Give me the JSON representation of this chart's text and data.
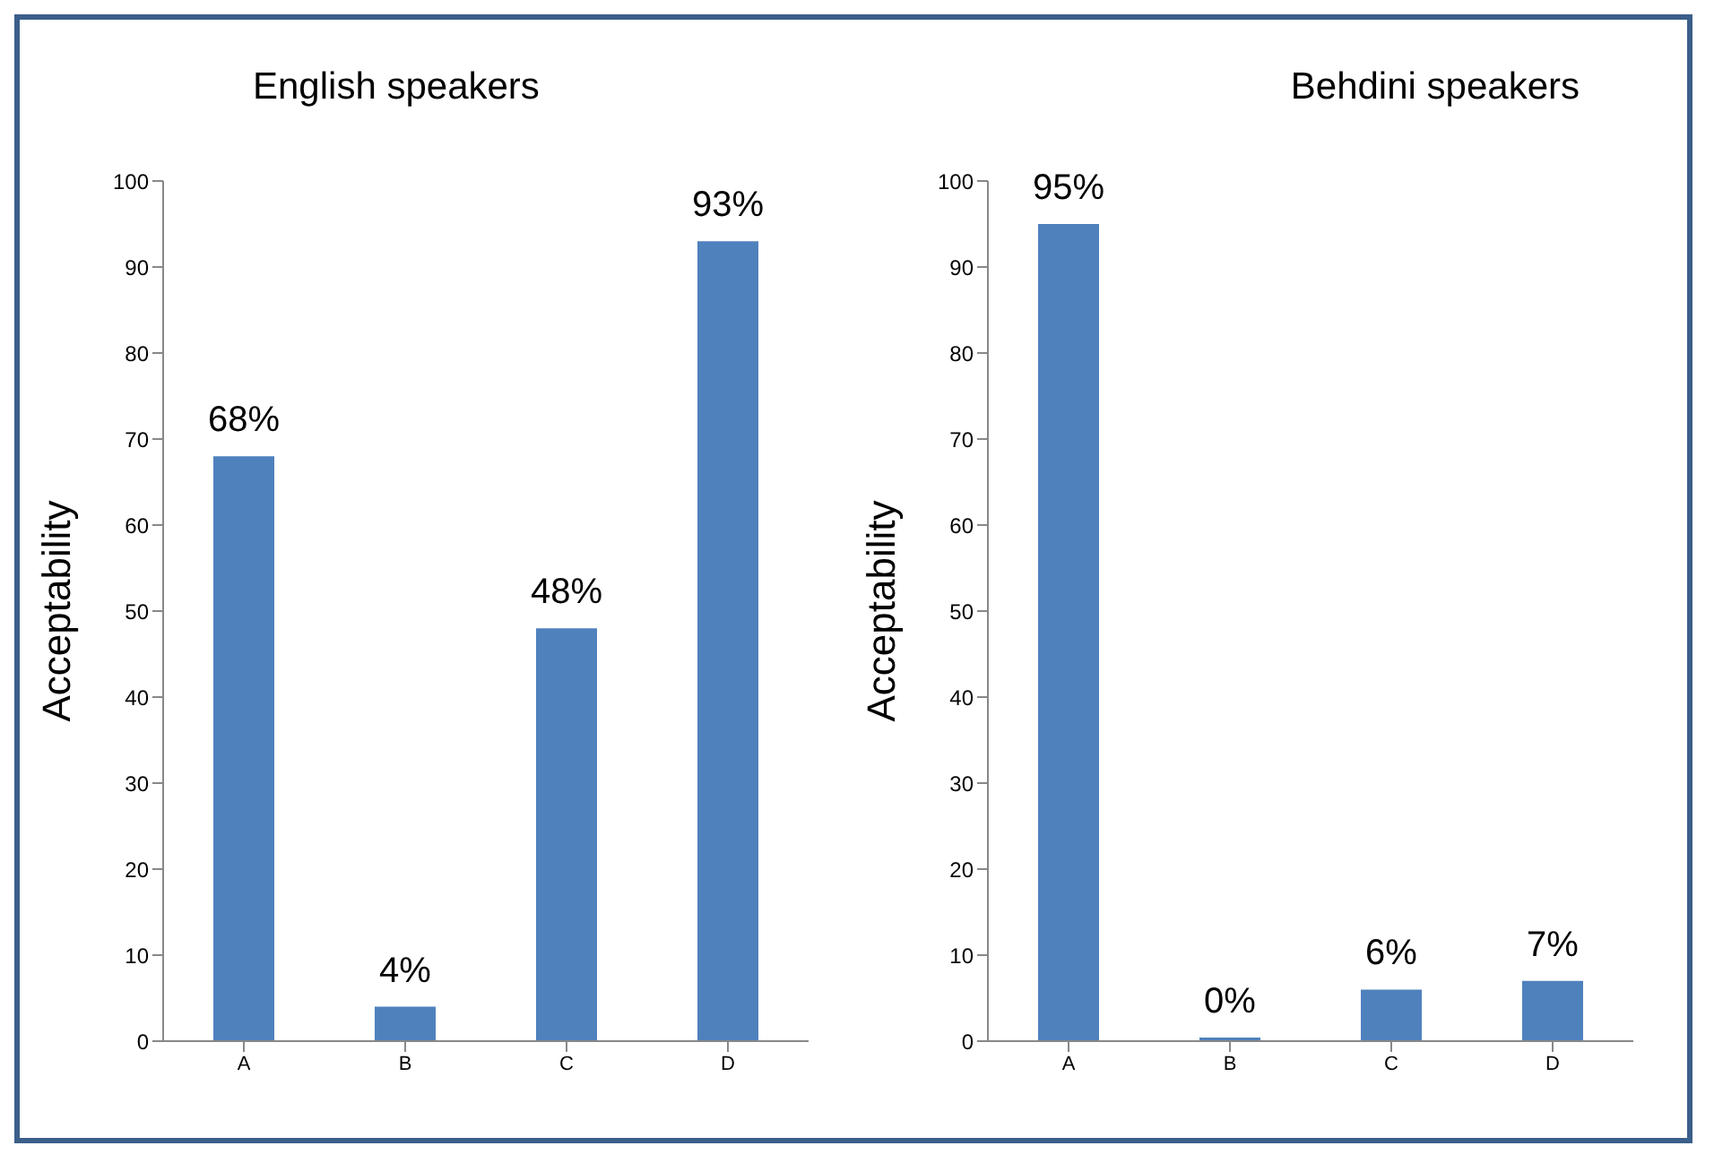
{
  "chart_data": [
    {
      "type": "bar",
      "title": "English speakers",
      "ylabel": "Acceptability",
      "categories": [
        "A",
        "B",
        "C",
        "D"
      ],
      "values": [
        68,
        4,
        48,
        93
      ],
      "value_labels": [
        "68%",
        "4%",
        "48%",
        "93%"
      ],
      "color": "#4f81bd",
      "ylim": [
        0,
        100
      ],
      "yticks": [
        0,
        10,
        20,
        30,
        40,
        50,
        60,
        70,
        80,
        90,
        100
      ],
      "grid": false,
      "legend": false
    },
    {
      "type": "bar",
      "title": "Behdini speakers",
      "ylabel": "Acceptability",
      "categories": [
        "A",
        "B",
        "C",
        "D"
      ],
      "values": [
        95,
        0,
        6,
        7
      ],
      "value_labels": [
        "95%",
        "0%",
        "6%",
        "7%"
      ],
      "color": "#4f81bd",
      "ylim": [
        0,
        100
      ],
      "yticks": [
        0,
        10,
        20,
        30,
        40,
        50,
        60,
        70,
        80,
        90,
        100
      ],
      "grid": false,
      "legend": false
    }
  ]
}
